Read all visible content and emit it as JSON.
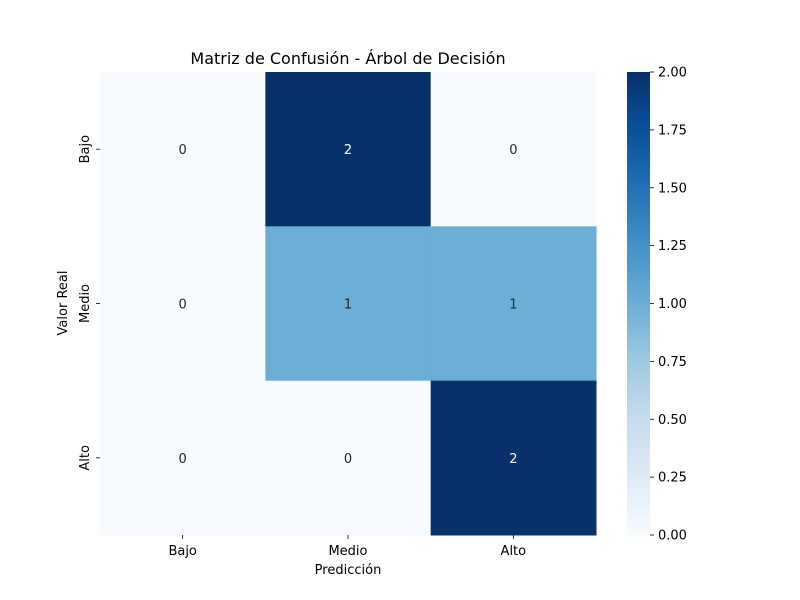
{
  "chart_data": {
    "type": "heatmap",
    "title": "Matriz de Confusión - Árbol de Decisión",
    "xlabel": "Predicción",
    "ylabel": "Valor Real",
    "x_categories": [
      "Bajo",
      "Medio",
      "Alto"
    ],
    "y_categories": [
      "Bajo",
      "Medio",
      "Alto"
    ],
    "values": [
      [
        0,
        2,
        0
      ],
      [
        0,
        1,
        1
      ],
      [
        0,
        0,
        2
      ]
    ],
    "colorbar": {
      "range": [
        0,
        2
      ],
      "ticks": [
        "0.00",
        "0.25",
        "0.50",
        "0.75",
        "1.00",
        "1.25",
        "1.50",
        "1.75",
        "2.00"
      ]
    },
    "colormap": {
      "name": "Blues",
      "stops": [
        "#f7fbff",
        "#deebf7",
        "#c6dbef",
        "#9ecae1",
        "#6baed6",
        "#4292c6",
        "#2171b5",
        "#08519c",
        "#08306b"
      ]
    }
  }
}
